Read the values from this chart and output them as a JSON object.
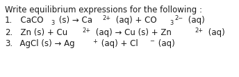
{
  "background_color": "#ffffff",
  "title": "Write equilibrium expressions for the following :",
  "font_size": 8.5,
  "font_color": "#1a1a1a",
  "lines": [
    {
      "number": "1.",
      "parts": [
        {
          "t": "  CaCO",
          "s": "n"
        },
        {
          "t": "3",
          "s": "b"
        },
        {
          "t": " (s) → Ca",
          "s": "n"
        },
        {
          "t": "2+",
          "s": "p"
        },
        {
          "t": " (aq) + CO",
          "s": "n"
        },
        {
          "t": "3",
          "s": "b"
        },
        {
          "t": "2−",
          "s": "p"
        },
        {
          "t": " (aq)",
          "s": "n"
        }
      ]
    },
    {
      "number": "2.",
      "parts": [
        {
          "t": "  Zn (s) + Cu",
          "s": "n"
        },
        {
          "t": "2+",
          "s": "p"
        },
        {
          "t": " (aq) → Cu (s) + Zn",
          "s": "n"
        },
        {
          "t": "2+",
          "s": "p"
        },
        {
          "t": " (aq)",
          "s": "n"
        }
      ]
    },
    {
      "number": "3.",
      "parts": [
        {
          "t": "  AgCl (s) → Ag",
          "s": "n"
        },
        {
          "t": "+",
          "s": "p"
        },
        {
          "t": " (aq) + Cl",
          "s": "n"
        },
        {
          "t": "−",
          "s": "p"
        },
        {
          "t": " (aq)",
          "s": "n"
        }
      ]
    }
  ]
}
